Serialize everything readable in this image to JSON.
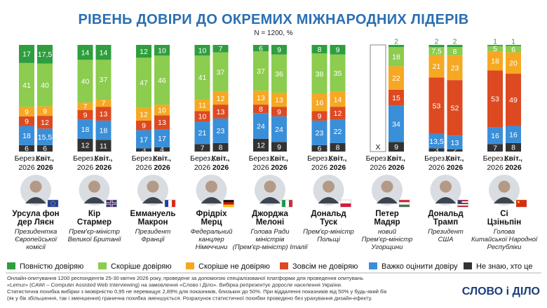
{
  "header": {
    "title": "РІВЕНЬ ДОВІРИ ДО ОКРЕМИХ МІЖНАРОДНИХ ЛІДЕРІВ",
    "subtitle": "N = 1200, %"
  },
  "colors": {
    "full_trust": "#2e9e3e",
    "rather_trust": "#8ccc4e",
    "rather_distrust": "#f6a823",
    "full_distrust": "#dd4a21",
    "hard_to_say": "#3a8fd9",
    "unfamiliar": "#333333"
  },
  "chart_data": {
    "type": "bar",
    "stacked": true,
    "orientation": "vertical",
    "title": "РІВЕНЬ ДОВІРИ ДО ОКРЕМИХ МІЖНАРОДНИХ ЛІДЕРІВ",
    "subtitle": "N = 1200, %",
    "periods": [
      "Берез., 2026",
      "Квіт., 2026"
    ],
    "series_keys": [
      "unfamiliar",
      "hard_to_say",
      "full_distrust",
      "rather_distrust",
      "rather_trust",
      "full_trust"
    ],
    "series_names": {
      "full_trust": "Повністю довіряю",
      "rather_trust": "Скоріше довіряю",
      "rather_distrust": "Скоріше не довіряю",
      "full_distrust": "Зовсім не довіряю",
      "hard_to_say": "Важко оцінити довіру",
      "unfamiliar": "Не знаю, хто це"
    },
    "leaders": [
      {
        "name": [
          "Урсула фон",
          "дер Ляєн"
        ],
        "role": [
          "Президентка",
          "Європейської",
          "комісії"
        ],
        "flag": "eu",
        "bars": [
          {
            "period": "Берез., 2026",
            "unfamiliar": 6,
            "hard_to_say": 18,
            "full_distrust": 9,
            "rather_distrust": 9,
            "rather_trust": 41,
            "full_trust": 17,
            "labels": {
              "unfamiliar": "6",
              "hard_to_say": "18",
              "full_distrust": "9",
              "rather_distrust": "9",
              "rather_trust": "41",
              "full_trust": "17"
            }
          },
          {
            "period": "Квіт., 2026",
            "unfamiliar": 6,
            "hard_to_say": 15.5,
            "full_distrust": 12,
            "rather_distrust": 9,
            "rather_trust": 40,
            "full_trust": 17.5,
            "labels": {
              "unfamiliar": "6",
              "hard_to_say": "15,5",
              "full_distrust": "12",
              "rather_distrust": "9",
              "rather_trust": "40",
              "full_trust": "17,5"
            }
          }
        ]
      },
      {
        "name": [
          "Кір",
          "Стармер"
        ],
        "role": [
          "Прем'єр-міністр",
          "Великої Британії"
        ],
        "flag": "uk",
        "bars": [
          {
            "period": "Берез., 2026",
            "unfamiliar": 12,
            "hard_to_say": 18,
            "full_distrust": 9,
            "rather_distrust": 7,
            "rather_trust": 40,
            "full_trust": 14,
            "labels": {
              "unfamiliar": "12",
              "hard_to_say": "18",
              "full_distrust": "9",
              "rather_distrust": "7",
              "rather_trust": "40",
              "full_trust": "14"
            }
          },
          {
            "period": "Квіт., 2026",
            "unfamiliar": 11,
            "hard_to_say": 18,
            "full_distrust": 13,
            "rather_distrust": 7,
            "rather_trust": 37,
            "full_trust": 14,
            "labels": {
              "unfamiliar": "11",
              "hard_to_say": "18",
              "full_distrust": "13",
              "rather_distrust": "7",
              "rather_trust": "37",
              "full_trust": "14"
            }
          }
        ]
      },
      {
        "name": [
          "Еммануель",
          "Макрон"
        ],
        "role": [
          "Президент",
          "Франції"
        ],
        "flag": "fr",
        "bars": [
          {
            "period": "Берез., 2026",
            "unfamiliar": 3,
            "hard_to_say": 17,
            "full_distrust": 9,
            "rather_distrust": 12,
            "rather_trust": 47,
            "full_trust": 12,
            "labels": {
              "unfamiliar": "3",
              "hard_to_say": "17",
              "full_distrust": "9",
              "rather_distrust": "12",
              "rather_trust": "47",
              "full_trust": "12"
            }
          },
          {
            "period": "Квіт., 2026",
            "unfamiliar": 4,
            "hard_to_say": 17,
            "full_distrust": 13,
            "rather_distrust": 10,
            "rather_trust": 46,
            "full_trust": 10,
            "labels": {
              "unfamiliar": "4",
              "hard_to_say": "17",
              "full_distrust": "13",
              "rather_distrust": "10",
              "rather_trust": "46",
              "full_trust": "10"
            }
          }
        ]
      },
      {
        "name": [
          "Фрідріх",
          "Мерц"
        ],
        "role": [
          "Федеральний",
          "канцлер",
          "Німеччини"
        ],
        "flag": "de",
        "bars": [
          {
            "period": "Берез., 2026",
            "unfamiliar": 7,
            "hard_to_say": 21,
            "full_distrust": 10,
            "rather_distrust": 11,
            "rather_trust": 41,
            "full_trust": 10,
            "labels": {
              "unfamiliar": "7",
              "hard_to_say": "21",
              "full_distrust": "10",
              "rather_distrust": "11",
              "rather_trust": "41",
              "full_trust": "10"
            }
          },
          {
            "period": "Квіт., 2026",
            "unfamiliar": 8,
            "hard_to_say": 23,
            "full_distrust": 13,
            "rather_distrust": 12,
            "rather_trust": 37,
            "full_trust": 7,
            "labels": {
              "unfamiliar": "8",
              "hard_to_say": "23",
              "full_distrust": "13",
              "rather_distrust": "12",
              "rather_trust": "37",
              "full_trust": "7"
            }
          }
        ]
      },
      {
        "name": [
          "Джорджа",
          "Мелоні"
        ],
        "role": [
          "Голова Ради",
          "міністрів",
          "(Прем'єр-міністр) Італії"
        ],
        "flag": "it",
        "bars": [
          {
            "period": "Берез., 2026",
            "unfamiliar": 12,
            "hard_to_say": 24,
            "full_distrust": 8,
            "rather_distrust": 13,
            "rather_trust": 37,
            "full_trust": 6,
            "labels": {
              "unfamiliar": "12",
              "hard_to_say": "24",
              "full_distrust": "8",
              "rather_distrust": "13",
              "rather_trust": "37",
              "full_trust": "6"
            }
          },
          {
            "period": "Квіт., 2026",
            "unfamiliar": 9,
            "hard_to_say": 24,
            "full_distrust": 9,
            "rather_distrust": 13,
            "rather_trust": 36,
            "full_trust": 9,
            "labels": {
              "unfamiliar": "9",
              "hard_to_say": "24",
              "full_distrust": "9",
              "rather_distrust": "13",
              "rather_trust": "36",
              "full_trust": "9"
            }
          }
        ]
      },
      {
        "name": [
          "Дональд",
          "Туск"
        ],
        "role": [
          "Прем'єр-міністр",
          "Польщі"
        ],
        "flag": "pl",
        "bars": [
          {
            "period": "Берез., 2026",
            "unfamiliar": 6,
            "hard_to_say": 23,
            "full_distrust": 9,
            "rather_distrust": 16,
            "rather_trust": 38,
            "full_trust": 8,
            "labels": {
              "unfamiliar": "6",
              "hard_to_say": "23",
              "full_distrust": "9",
              "rather_distrust": "16",
              "rather_trust": "38",
              "full_trust": "8"
            }
          },
          {
            "period": "Квіт., 2026",
            "unfamiliar": 8,
            "hard_to_say": 22,
            "full_distrust": 12,
            "rather_distrust": 14,
            "rather_trust": 35,
            "full_trust": 9,
            "labels": {
              "unfamiliar": "8",
              "hard_to_say": "22",
              "full_distrust": "12",
              "rather_distrust": "14",
              "rather_trust": "35",
              "full_trust": "9"
            }
          }
        ]
      },
      {
        "name": [
          "Петер",
          "Мадяр"
        ],
        "role": [
          "новий",
          "Прем'єр-міністр",
          "Угорщини"
        ],
        "flag": "hu",
        "bars": [
          {
            "period": "Берез., 2026",
            "missing": true,
            "missing_label": "Х"
          },
          {
            "period": "Квіт., 2026",
            "unfamiliar": 9,
            "hard_to_say": 34,
            "full_distrust": 15,
            "rather_distrust": 22,
            "rather_trust": 18,
            "full_trust": 2,
            "labels": {
              "unfamiliar": "9",
              "hard_to_say": "34",
              "full_distrust": "15",
              "rather_distrust": "22",
              "rather_trust": "18",
              "full_trust": "2"
            }
          }
        ]
      },
      {
        "name": [
          "Дональд",
          "Трамп"
        ],
        "role": [
          "Президент",
          "США"
        ],
        "flag": "us",
        "bars": [
          {
            "period": "Берез., 2026",
            "unfamiliar": 3,
            "hard_to_say": 13.5,
            "full_distrust": 53,
            "rather_distrust": 21,
            "rather_trust": 7.5,
            "full_trust": 2,
            "labels": {
              "unfamiliar": "3",
              "hard_to_say": "13,5",
              "full_distrust": "53",
              "rather_distrust": "21",
              "rather_trust": "7,5",
              "full_trust": "2"
            }
          },
          {
            "period": "Квіт., 2026",
            "unfamiliar": 2,
            "hard_to_say": 13,
            "full_distrust": 52,
            "rather_distrust": 23,
            "rather_trust": 8,
            "full_trust": 2,
            "labels": {
              "unfamiliar": "2",
              "hard_to_say": "13",
              "full_distrust": "52",
              "rather_distrust": "23",
              "rather_trust": "8",
              "full_trust": "2"
            }
          }
        ]
      },
      {
        "name": [
          "Сі",
          "Цзіньпін"
        ],
        "role": [
          "Голова",
          "Китайської Народної",
          "Республіки"
        ],
        "flag": "cn",
        "bars": [
          {
            "period": "Берез., 2026",
            "unfamiliar": 7,
            "hard_to_say": 16,
            "full_distrust": 53,
            "rather_distrust": 18,
            "rather_trust": 5,
            "full_trust": 1,
            "labels": {
              "unfamiliar": "7",
              "hard_to_say": "16",
              "full_distrust": "53",
              "rather_distrust": "18",
              "rather_trust": "5",
              "full_trust": "1"
            }
          },
          {
            "period": "Квіт., 2026",
            "unfamiliar": 8,
            "hard_to_say": 16,
            "full_distrust": 49,
            "rather_distrust": 20,
            "rather_trust": 6,
            "full_trust": 1,
            "labels": {
              "unfamiliar": "8",
              "hard_to_say": "16",
              "full_distrust": "49",
              "rather_distrust": "20",
              "rather_trust": "6",
              "full_trust": "1"
            }
          }
        ]
      }
    ]
  },
  "legend": [
    {
      "key": "full_trust",
      "label": "Повністю довіряю"
    },
    {
      "key": "rather_trust",
      "label": "Скоріше довіряю"
    },
    {
      "key": "rather_distrust",
      "label": "Скоріше не довіряю"
    },
    {
      "key": "full_distrust",
      "label": "Зовсім не довіряю"
    },
    {
      "key": "hard_to_say",
      "label": "Важко оцінити довіру"
    },
    {
      "key": "unfamiliar",
      "label": "Не знаю, хто це"
    }
  ],
  "footnote": [
    "Онлайн-опитування 1200 респондентів 25-30 квітня 2026 року, проведене за допомогою спеціалізованої платформи для проведення опитувань",
    "«Lemur» (CAWI – Computer Assisted Web Interviewing) на замовлення «Слово і Діло». Вибірка репрезентує доросле населення України.",
    "Статистична похибка вибірки з імовірністю 0,95 не перевищує 2,89% для показників, близьких до 50%. При віддаленні показників від 50% у будь-який бік",
    "(як у бік збільшення, так і зменшення) гранична похибка зменшується. Розрахунок статистичної похибки проведено без урахування дизайн-ефекту."
  ],
  "brand": {
    "name": "СЛОВО і ДІЛО"
  }
}
